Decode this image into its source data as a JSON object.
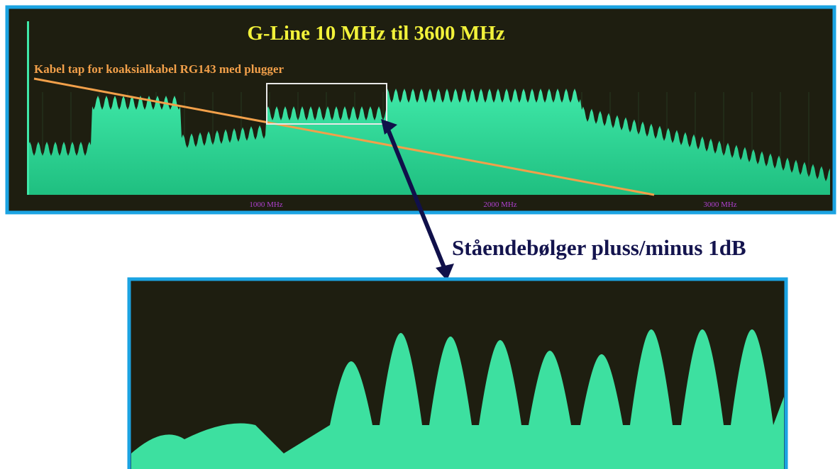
{
  "header": {
    "title": "G-Line 10 MHz til 3600 MHz",
    "cable_label": "Kabel tap for koaksialkabel RG143 med plugger"
  },
  "frequency_labels": [
    "1000 MHz",
    "2000 MHz",
    "3000 MHz"
  ],
  "annotation": "Ståendebølger pluss/minus 1dB"
}
